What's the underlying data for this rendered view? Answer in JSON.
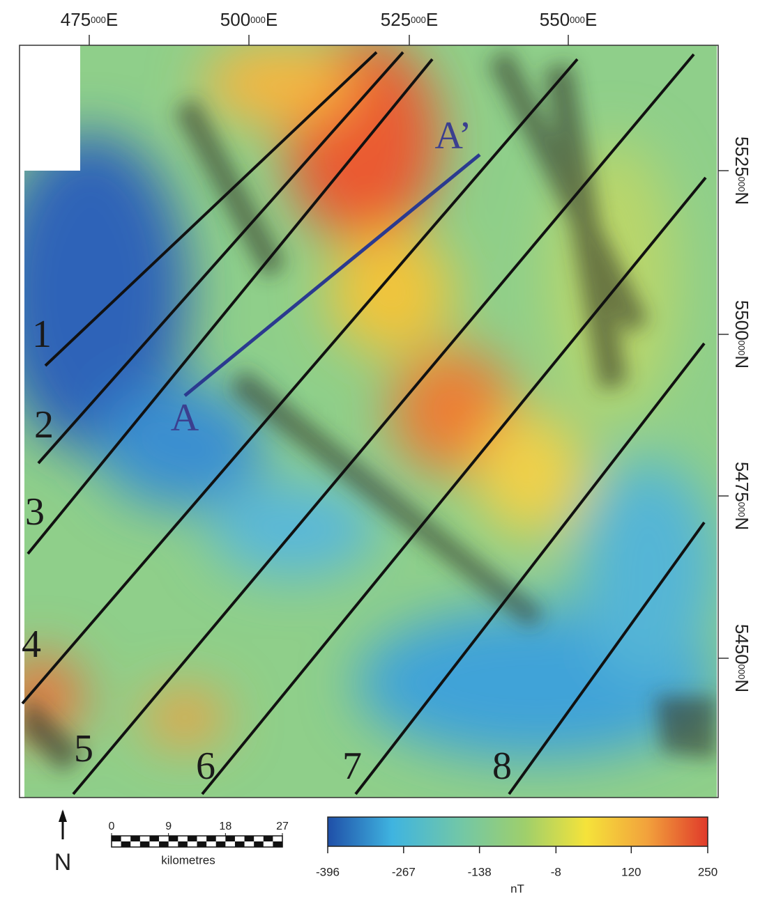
{
  "map": {
    "easting_labels": [
      {
        "major": "475",
        "minor": "000",
        "suffix": "E"
      },
      {
        "major": "500",
        "minor": "000",
        "suffix": "E"
      },
      {
        "major": "525",
        "minor": "000",
        "suffix": "E"
      },
      {
        "major": "550",
        "minor": "000",
        "suffix": "E"
      }
    ],
    "northing_labels": [
      {
        "major": "5525",
        "minor": "000",
        "suffix": "N"
      },
      {
        "major": "5500",
        "minor": "000",
        "suffix": "N"
      },
      {
        "major": "5475",
        "minor": "000",
        "suffix": "N"
      },
      {
        "major": "5450",
        "minor": "000",
        "suffix": "N"
      }
    ],
    "profile_labels": [
      "1",
      "2",
      "3",
      "4",
      "5",
      "6",
      "7",
      "8"
    ],
    "section": {
      "start": "A",
      "end": "A’"
    },
    "north": "N",
    "scale_bar": {
      "ticks": [
        0,
        9,
        18,
        27
      ],
      "unit": "kilometres"
    },
    "colorbar": {
      "ticks": [
        -396,
        -267,
        -138,
        -8,
        120,
        250
      ],
      "unit": "nT"
    }
  }
}
